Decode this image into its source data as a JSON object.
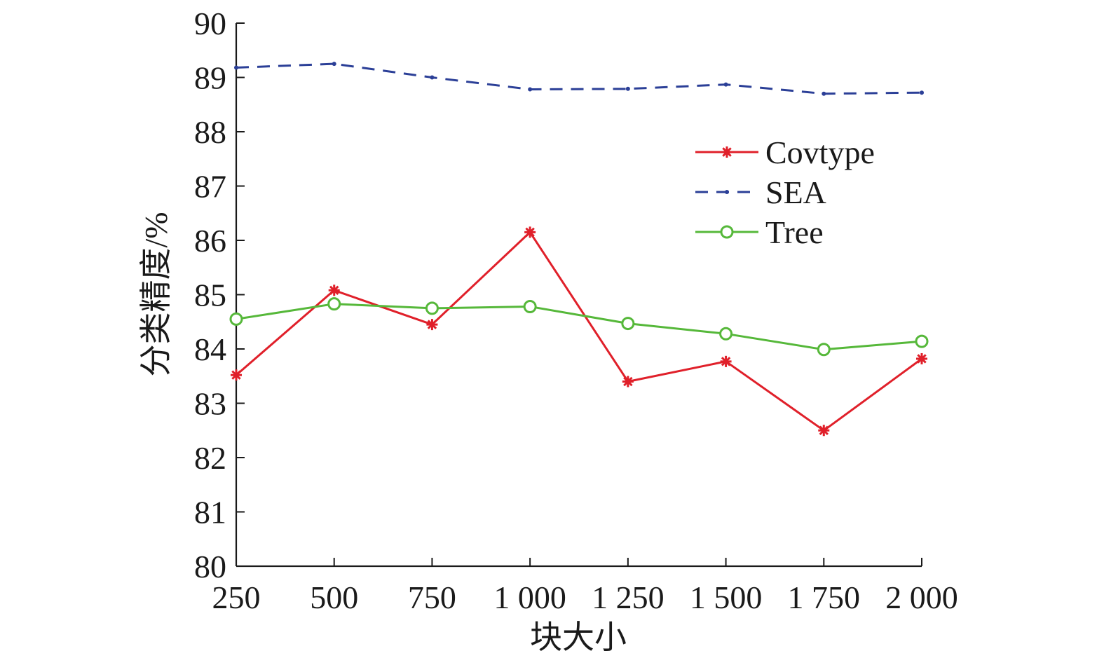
{
  "chart_data": {
    "type": "line",
    "title": "",
    "xlabel": "块大小",
    "ylabel": "分类精度/%",
    "x": [
      250,
      500,
      750,
      1000,
      1250,
      1500,
      1750,
      2000
    ],
    "x_tick_labels": [
      "250",
      "500",
      "750",
      "1 000",
      "1 250",
      "1 500",
      "1 750",
      "2 000"
    ],
    "xlim": [
      250,
      2000
    ],
    "ylim": [
      80,
      90
    ],
    "y_ticks": [
      80,
      81,
      82,
      83,
      84,
      85,
      86,
      87,
      88,
      89,
      90
    ],
    "y_tick_labels": [
      "80",
      "81",
      "82",
      "83",
      "84",
      "85",
      "86",
      "87",
      "88",
      "89",
      "90"
    ],
    "grid": false,
    "legend_position": "upper-right",
    "series": [
      {
        "name": "Covtype",
        "color": "#e0202a",
        "dash": "solid",
        "marker": "asterisk",
        "values": [
          83.52,
          85.08,
          84.45,
          86.15,
          83.4,
          83.77,
          82.5,
          83.82
        ]
      },
      {
        "name": "SEA",
        "color": "#2b3f97",
        "dash": "dashed",
        "marker": "dot",
        "values": [
          89.18,
          89.25,
          89.0,
          88.78,
          88.79,
          88.87,
          88.7,
          88.72
        ]
      },
      {
        "name": "Tree",
        "color": "#56b83a",
        "dash": "solid",
        "marker": "circle",
        "values": [
          84.55,
          84.83,
          84.75,
          84.78,
          84.47,
          84.28,
          83.99,
          84.14
        ]
      }
    ]
  }
}
